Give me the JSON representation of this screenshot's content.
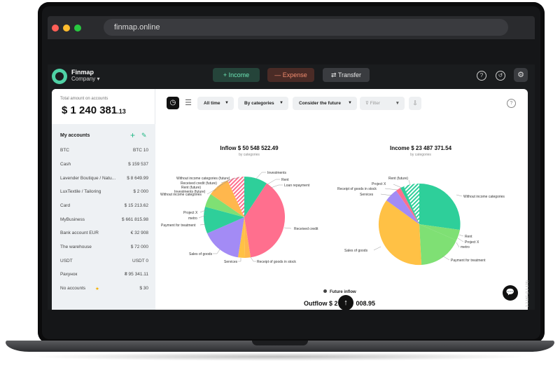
{
  "browser": {
    "url": "finmap.online"
  },
  "header": {
    "brand": "Finmap",
    "company": "Company ▾",
    "income_btn": "+ Income",
    "expense_btn": "— Expense",
    "transfer_btn": "⇄ Transfer"
  },
  "sidebar": {
    "total_label": "Total amount on accounts",
    "total_value": "$ 1 240 381",
    "total_cents": ".13",
    "my_accounts": "My accounts",
    "accounts": [
      {
        "name": "BTC",
        "value": "BTC 10"
      },
      {
        "name": "Cash",
        "value": "$ 159 537"
      },
      {
        "name": "Lavender Boutique / Natu...",
        "value": "$ 8 649.99"
      },
      {
        "name": "LuxTextile / Tailoring",
        "value": "$ 2 000"
      },
      {
        "name": "Card",
        "value": "$ 15 213.62"
      },
      {
        "name": "MyBusiness",
        "value": "$ 661 815.98"
      },
      {
        "name": "Bank account EUR",
        "value": "€ 32 908"
      },
      {
        "name": "The warehouse",
        "value": "$ 72 000"
      },
      {
        "name": "USDT",
        "value": "USDT 0"
      },
      {
        "name": "Рахунок",
        "value": "₴ 95 341.11"
      },
      {
        "name": "No accounts",
        "value": "$ 30"
      }
    ]
  },
  "toolbar": {
    "period": "All time",
    "grouping": "By categories",
    "future": "Consider the future",
    "filter": "Filter"
  },
  "inflow": {
    "title": "Inflow  $ 50 548 522.49",
    "subtitle": "by categories",
    "labels": {
      "investments": "Investments",
      "rent": "Rent",
      "loan": "Loan repayment",
      "received_credit": "Received credit",
      "receipt_goods": "Receipt of goods in stock",
      "services": "Services",
      "sales": "Sales of goods",
      "payment_treatment": "Payment for treatment",
      "metro": "metro",
      "project_x": "Project X",
      "without_cat": "Without income categories",
      "investments_future": "Investments (future)",
      "rent_future": "Rent (future)",
      "received_credit_future": "Received credit (future)",
      "without_cat_future": "Without income categories (future)"
    }
  },
  "income": {
    "title": "Income  $ 23 487 371.54",
    "subtitle": "by categories",
    "labels": {
      "rent_future": "Rent (future)",
      "project_x": "Project X",
      "receipt_goods": "Receipt of goods in stock",
      "services": "Services",
      "without_cat": "Without income categories",
      "rent": "Rent",
      "project_x2": "Project X",
      "metro": "metro",
      "sales": "Sales of goods",
      "payment_treatment": "Payment for treatment"
    }
  },
  "bottom": {
    "future_inflow": "Future inflow",
    "outflow": "Outflow  $ 2",
    "outflow_tail": "008.95"
  },
  "version": "2.2.187 (2.2.179)",
  "colors": {
    "teal": "#2ecf9a",
    "pink": "#ff6f8e",
    "orange": "#ffb74d",
    "purple": "#a38bf5",
    "green": "#7fe074",
    "yellow": "#ffc145"
  }
}
